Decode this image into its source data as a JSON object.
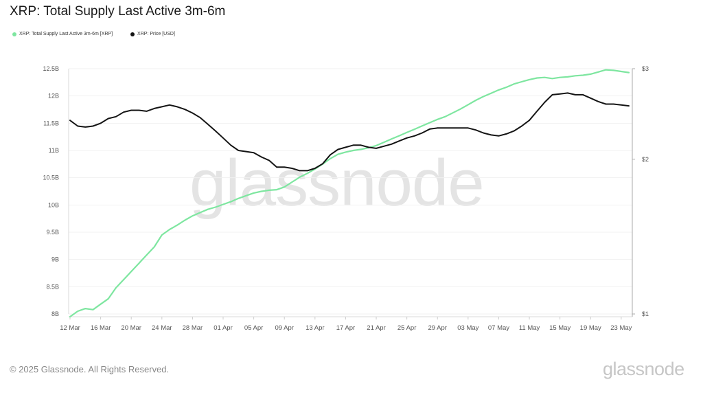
{
  "title": "XRP: Total Supply Last Active 3m-6m",
  "watermark": "glassnode",
  "footer": {
    "copyright": "© 2025 Glassnode. All Rights Reserved.",
    "brand": "glassnode"
  },
  "colors": {
    "supply": "#7ee6a0",
    "price": "#141414",
    "axis_text": "#555555",
    "grid": "#f1f1f1"
  },
  "chart_data": {
    "type": "line",
    "grid": true,
    "legend": "top-left",
    "x_tick_labels": [
      "12 Mar",
      "16 Mar",
      "20 Mar",
      "24 Mar",
      "28 Mar",
      "01 Apr",
      "05 Apr",
      "09 Apr",
      "13 Apr",
      "17 Apr",
      "21 Apr",
      "25 Apr",
      "29 Apr",
      "03 May",
      "07 May",
      "11 May",
      "15 May",
      "19 May",
      "23 May"
    ],
    "y_left": {
      "tick_labels": [
        "8B",
        "8.5B",
        "9B",
        "9.5B",
        "10B",
        "10.5B",
        "11B",
        "11.5B",
        "12B",
        "12.5B"
      ],
      "range": [
        8,
        12.5
      ],
      "unit": "B"
    },
    "y_right": {
      "tick_labels": [
        "$1",
        "$2",
        "$3"
      ],
      "range": [
        1,
        3
      ],
      "scale": "log"
    },
    "x": [
      "2025-03-12",
      "2025-03-13",
      "2025-03-14",
      "2025-03-15",
      "2025-03-16",
      "2025-03-17",
      "2025-03-18",
      "2025-03-19",
      "2025-03-20",
      "2025-03-21",
      "2025-03-22",
      "2025-03-23",
      "2025-03-24",
      "2025-03-25",
      "2025-03-26",
      "2025-03-27",
      "2025-03-28",
      "2025-03-29",
      "2025-03-30",
      "2025-03-31",
      "2025-04-01",
      "2025-04-02",
      "2025-04-03",
      "2025-04-04",
      "2025-04-05",
      "2025-04-06",
      "2025-04-07",
      "2025-04-08",
      "2025-04-09",
      "2025-04-10",
      "2025-04-11",
      "2025-04-12",
      "2025-04-13",
      "2025-04-14",
      "2025-04-15",
      "2025-04-16",
      "2025-04-17",
      "2025-04-18",
      "2025-04-19",
      "2025-04-20",
      "2025-04-21",
      "2025-04-22",
      "2025-04-23",
      "2025-04-24",
      "2025-04-25",
      "2025-04-26",
      "2025-04-27",
      "2025-04-28",
      "2025-04-29",
      "2025-04-30",
      "2025-05-01",
      "2025-05-02",
      "2025-05-03",
      "2025-05-04",
      "2025-05-05",
      "2025-05-06",
      "2025-05-07",
      "2025-05-08",
      "2025-05-09",
      "2025-05-10",
      "2025-05-11",
      "2025-05-12",
      "2025-05-13",
      "2025-05-14",
      "2025-05-15",
      "2025-05-16",
      "2025-05-17",
      "2025-05-18",
      "2025-05-19",
      "2025-05-20",
      "2025-05-21",
      "2025-05-22",
      "2025-05-23",
      "2025-05-24"
    ],
    "series": [
      {
        "name": "XRP: Total Supply Last Active 3m-6m [XRP]",
        "axis": "left",
        "color": "#7ee6a0",
        "values": [
          7.95,
          8.05,
          8.1,
          8.08,
          8.18,
          8.28,
          8.48,
          8.63,
          8.78,
          8.93,
          9.08,
          9.23,
          9.45,
          9.55,
          9.63,
          9.72,
          9.8,
          9.86,
          9.92,
          9.96,
          10.01,
          10.06,
          10.12,
          10.17,
          10.22,
          10.25,
          10.27,
          10.28,
          10.33,
          10.42,
          10.51,
          10.58,
          10.66,
          10.75,
          10.85,
          10.93,
          10.97,
          11.0,
          11.02,
          11.05,
          11.09,
          11.15,
          11.21,
          11.27,
          11.33,
          11.39,
          11.45,
          11.51,
          11.57,
          11.62,
          11.69,
          11.76,
          11.84,
          11.92,
          11.99,
          12.05,
          12.11,
          12.16,
          12.22,
          12.26,
          12.3,
          12.33,
          12.34,
          12.32,
          12.34,
          12.35,
          12.37,
          12.38,
          12.4,
          12.44,
          12.48,
          12.47,
          12.45,
          12.43
        ]
      },
      {
        "name": "XRP: Price [USD]",
        "axis": "right",
        "color": "#141414",
        "values": [
          2.38,
          2.32,
          2.31,
          2.32,
          2.35,
          2.4,
          2.42,
          2.47,
          2.49,
          2.49,
          2.48,
          2.51,
          2.53,
          2.55,
          2.53,
          2.5,
          2.46,
          2.41,
          2.34,
          2.27,
          2.2,
          2.13,
          2.08,
          2.07,
          2.06,
          2.02,
          1.99,
          1.93,
          1.93,
          1.92,
          1.9,
          1.9,
          1.92,
          1.96,
          2.04,
          2.09,
          2.11,
          2.13,
          2.13,
          2.11,
          2.1,
          2.12,
          2.14,
          2.17,
          2.2,
          2.22,
          2.25,
          2.29,
          2.3,
          2.3,
          2.3,
          2.3,
          2.3,
          2.28,
          2.25,
          2.23,
          2.22,
          2.24,
          2.27,
          2.32,
          2.38,
          2.48,
          2.58,
          2.67,
          2.68,
          2.69,
          2.67,
          2.67,
          2.63,
          2.59,
          2.56,
          2.56,
          2.55,
          2.54
        ]
      }
    ]
  }
}
